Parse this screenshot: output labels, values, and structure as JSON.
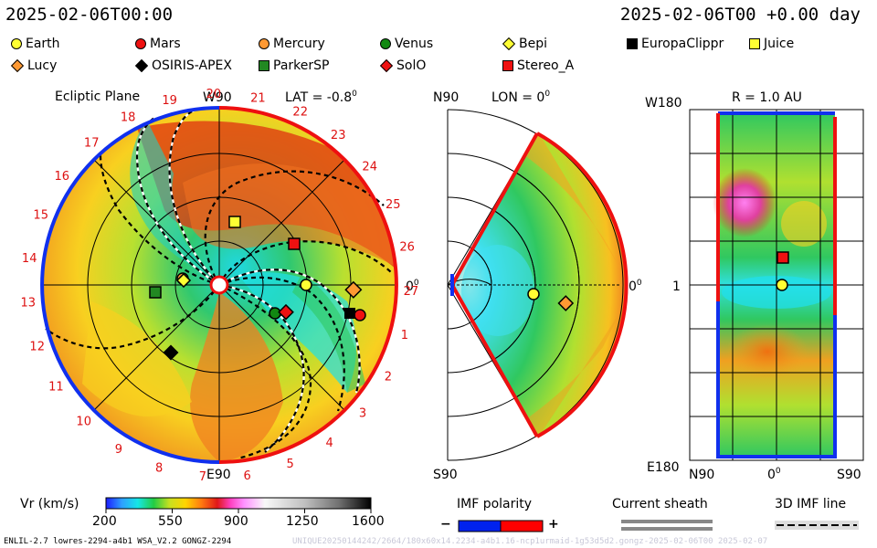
{
  "header": {
    "left_time": "2025-02-06T00:00",
    "right_time": "2025-02-06T00 +0.00 day"
  },
  "legend": [
    {
      "name": "Earth",
      "shape": "circle",
      "color": "#ffff33"
    },
    {
      "name": "Mars",
      "shape": "circle",
      "color": "#ee1111"
    },
    {
      "name": "Mercury",
      "shape": "circle",
      "color": "#ff9933"
    },
    {
      "name": "Venus",
      "shape": "circle",
      "color": "#118811"
    },
    {
      "name": "Bepi",
      "shape": "diamond",
      "color": "#ffff33"
    },
    {
      "name": "EuropaClippr",
      "shape": "square",
      "color": "#000000"
    },
    {
      "name": "Juice",
      "shape": "square",
      "color": "#ffff33"
    },
    {
      "name": "Lucy",
      "shape": "diamond",
      "color": "#ff9933"
    },
    {
      "name": "OSIRIS-APEX",
      "shape": "diamond",
      "color": "#000000"
    },
    {
      "name": "ParkerSP",
      "shape": "square",
      "color": "#228822"
    },
    {
      "name": "SolO",
      "shape": "diamond",
      "color": "#ee1111"
    },
    {
      "name": "Stereo_A",
      "shape": "square",
      "color": "#ee1111"
    }
  ],
  "panel_left": {
    "title": "Ecliptic Plane",
    "top_label": "W90",
    "lat_label": "LAT = -0.8",
    "lat_sup": "0",
    "bottom_label": "E90",
    "right_label": "0",
    "right_sup": "0",
    "carrington_numbers": [
      "19",
      "20",
      "21",
      "22",
      "23",
      "24",
      "25",
      "26",
      "27",
      "1",
      "2",
      "3",
      "4",
      "5",
      "6",
      "7",
      "8",
      "9",
      "10",
      "11",
      "12",
      "13",
      "14",
      "15",
      "16",
      "17",
      "18"
    ]
  },
  "panel_mid": {
    "top_label": "N90",
    "lon_label": "LON = 0",
    "lon_sup": "0",
    "bottom_label": "S90",
    "right_label": "0",
    "right_sup": "0"
  },
  "panel_right": {
    "r_label": "R = 1.0 AU",
    "top_left": "W180",
    "mid_left": "1",
    "bottom_left": "E180",
    "x_left": "N90",
    "x_mid": "0",
    "x_mid_sup": "0",
    "x_right": "S90"
  },
  "colorbar": {
    "label": "Vr (km/s)",
    "ticks": [
      "200",
      "550",
      "900",
      "1250",
      "1600"
    ],
    "colors": [
      "#1c1cff",
      "#2ea0ff",
      "#16e6e6",
      "#22cc44",
      "#c8e020",
      "#ffd400",
      "#ff7a10",
      "#e01818",
      "#ff40c0",
      "#ff90ff",
      "#f8f8f8",
      "#c0c0c0",
      "#808080",
      "#303030",
      "#000000"
    ]
  },
  "imf_polarity": {
    "label": "IMF polarity",
    "minus": "−",
    "plus": "+",
    "neg_color": "#0022ee",
    "pos_color": "#ff0000"
  },
  "current_sheath": {
    "label": "Current sheath"
  },
  "imf_line": {
    "label": "3D IMF line"
  },
  "footer": {
    "left": "ENLIL-2.7 lowres-2294-a4b1 WSA_V2.2 GONGZ-2294",
    "right": "UNIQUE20250144242/2664/180x60x14.2234-a4b1.16-ncp1urmaid-1g53d5d2.gongz-2025-02-06T00  2025-02-07"
  }
}
